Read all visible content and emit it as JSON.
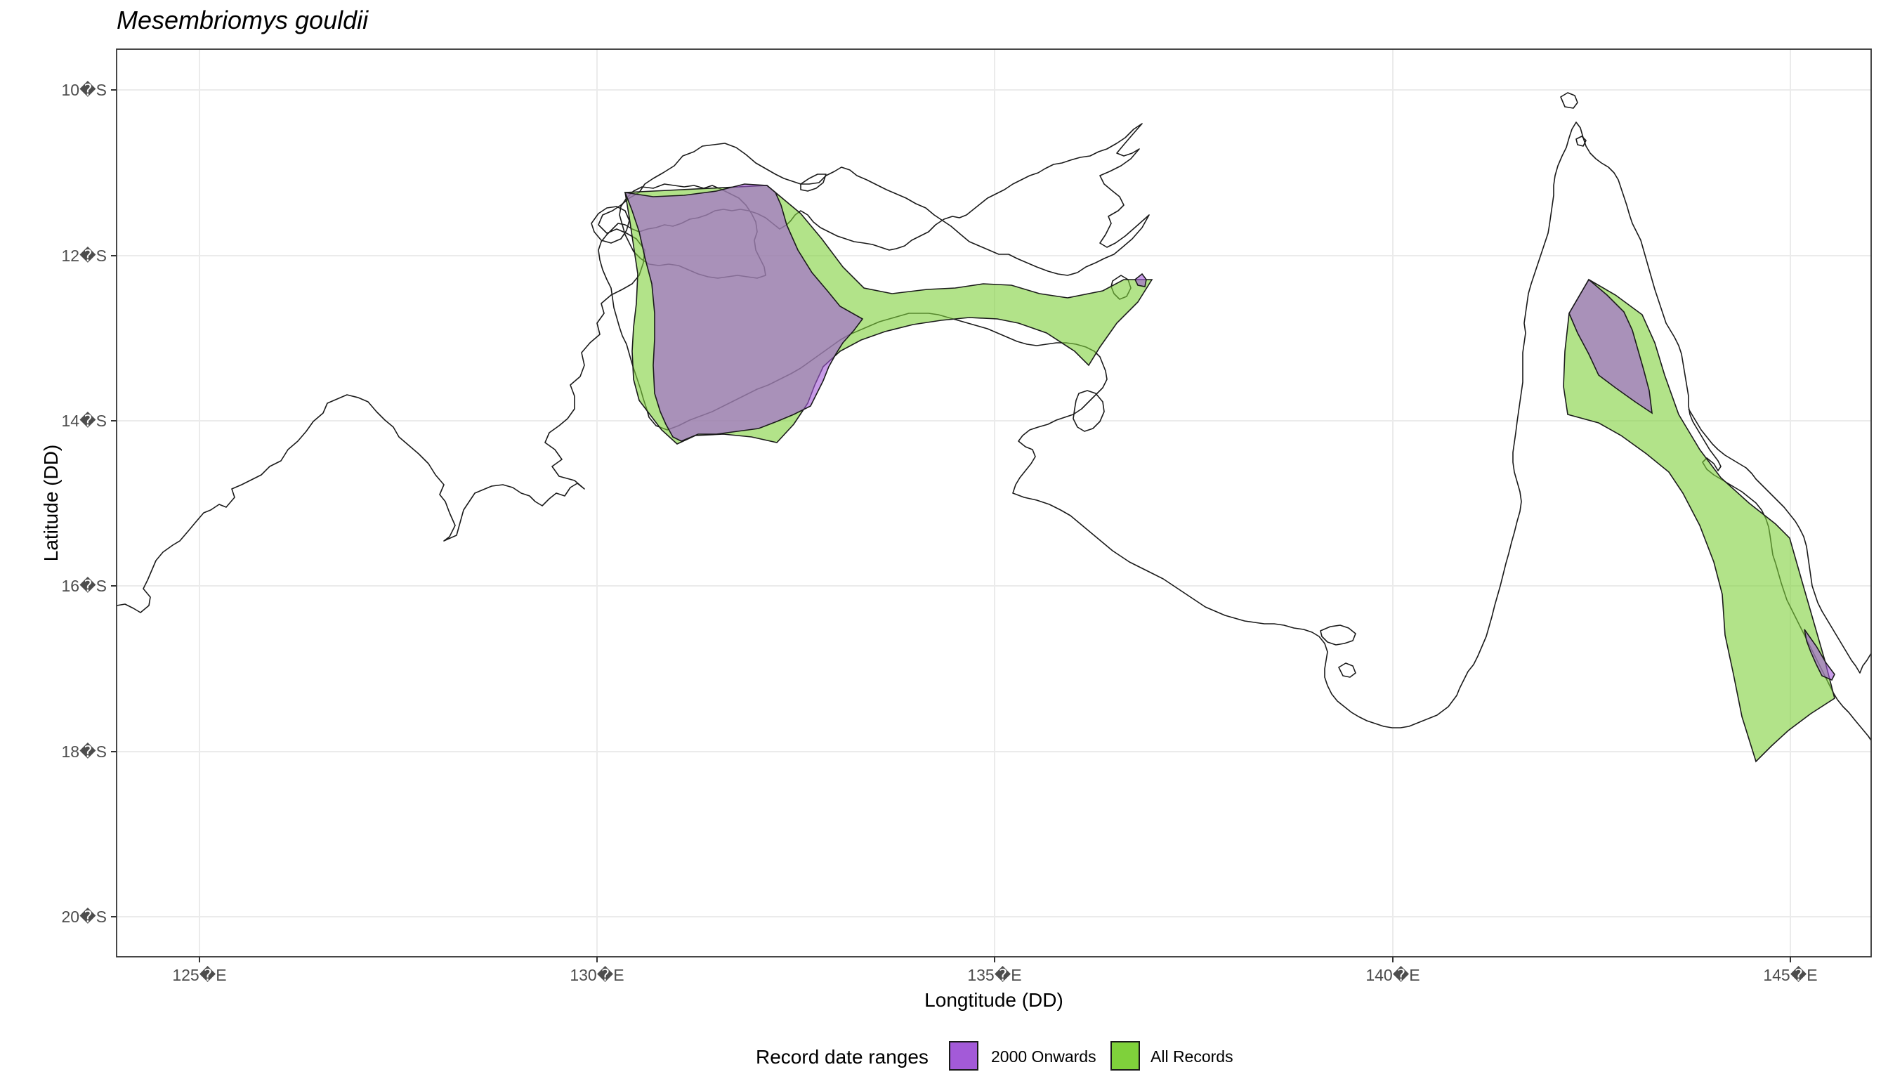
{
  "title": "Mesembriomys gouldii",
  "axes": {
    "x_label": "Longtitude (DD)",
    "y_label": "Latitude (DD)",
    "x_ticks": [
      {
        "value": 125,
        "label": "125�E"
      },
      {
        "value": 130,
        "label": "130�E"
      },
      {
        "value": 135,
        "label": "135�E"
      },
      {
        "value": 140,
        "label": "140�E"
      },
      {
        "value": 145,
        "label": "145�E"
      }
    ],
    "y_ticks": [
      {
        "value": -10,
        "label": "10�S"
      },
      {
        "value": -12,
        "label": "12�S"
      },
      {
        "value": -14,
        "label": "14�S"
      },
      {
        "value": -16,
        "label": "16�S"
      },
      {
        "value": -18,
        "label": "18�S"
      },
      {
        "value": -20,
        "label": "20�S"
      }
    ],
    "x_range": [
      124,
      146
    ],
    "y_range": [
      -20.5,
      -9.5
    ]
  },
  "legend": {
    "title": "Record date ranges",
    "placement": "bottom",
    "items": [
      {
        "label": "2000 Onwards",
        "color": "#a35ad8"
      },
      {
        "label": "All Records",
        "color": "#7fd13b"
      }
    ]
  },
  "layers": {
    "all_records_color": "#7fd13b",
    "onwards_2000_color": "#a35ad8",
    "fill_alpha": 0.6,
    "coastline_color": "#1a1a1a",
    "grid": true,
    "theme": "bw"
  }
}
